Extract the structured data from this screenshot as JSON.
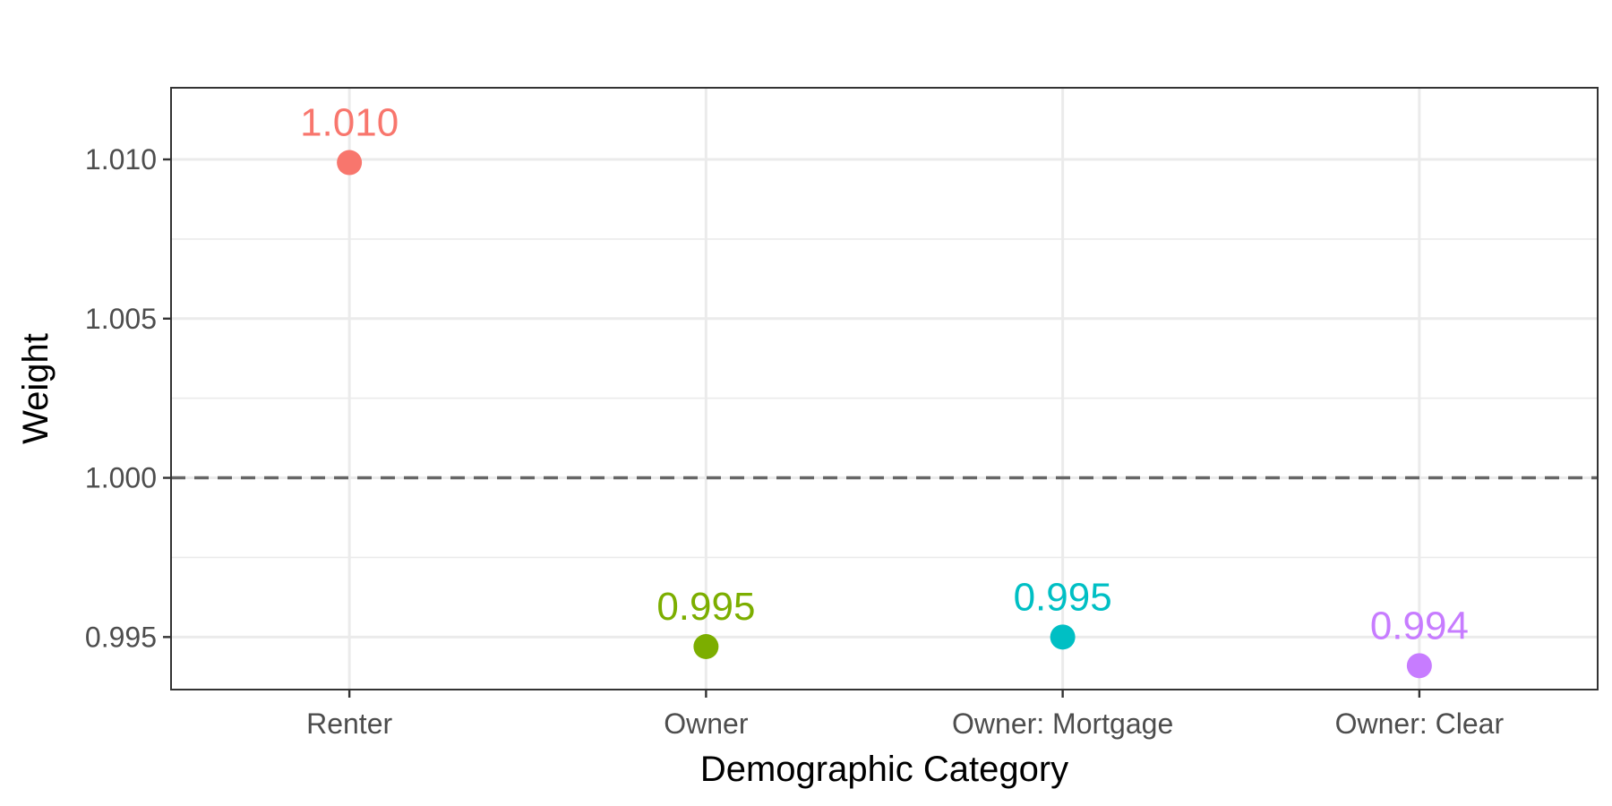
{
  "chart_data": {
    "type": "scatter",
    "title": "",
    "xlabel": "Demographic Category",
    "ylabel": "Weight",
    "categories": [
      "Renter",
      "Owner",
      "Owner: Mortgage",
      "Owner: Clear"
    ],
    "values": [
      1.0099,
      0.9947,
      0.995,
      0.9941
    ],
    "labels": [
      "1.010",
      "0.995",
      "0.995",
      "0.994"
    ],
    "colors": [
      "#F8766D",
      "#7CAE00",
      "#00BFC4",
      "#C77CFF"
    ],
    "ylim": [
      0.99335,
      1.01225
    ],
    "yticks": [
      0.995,
      1.0,
      1.005,
      1.01
    ],
    "ytick_labels": [
      "0.995",
      "1.000",
      "1.005",
      "1.010"
    ],
    "reference_line": {
      "y": 1.0,
      "style": "dashed",
      "color": "#666666"
    },
    "grid": true,
    "legend": "none"
  }
}
